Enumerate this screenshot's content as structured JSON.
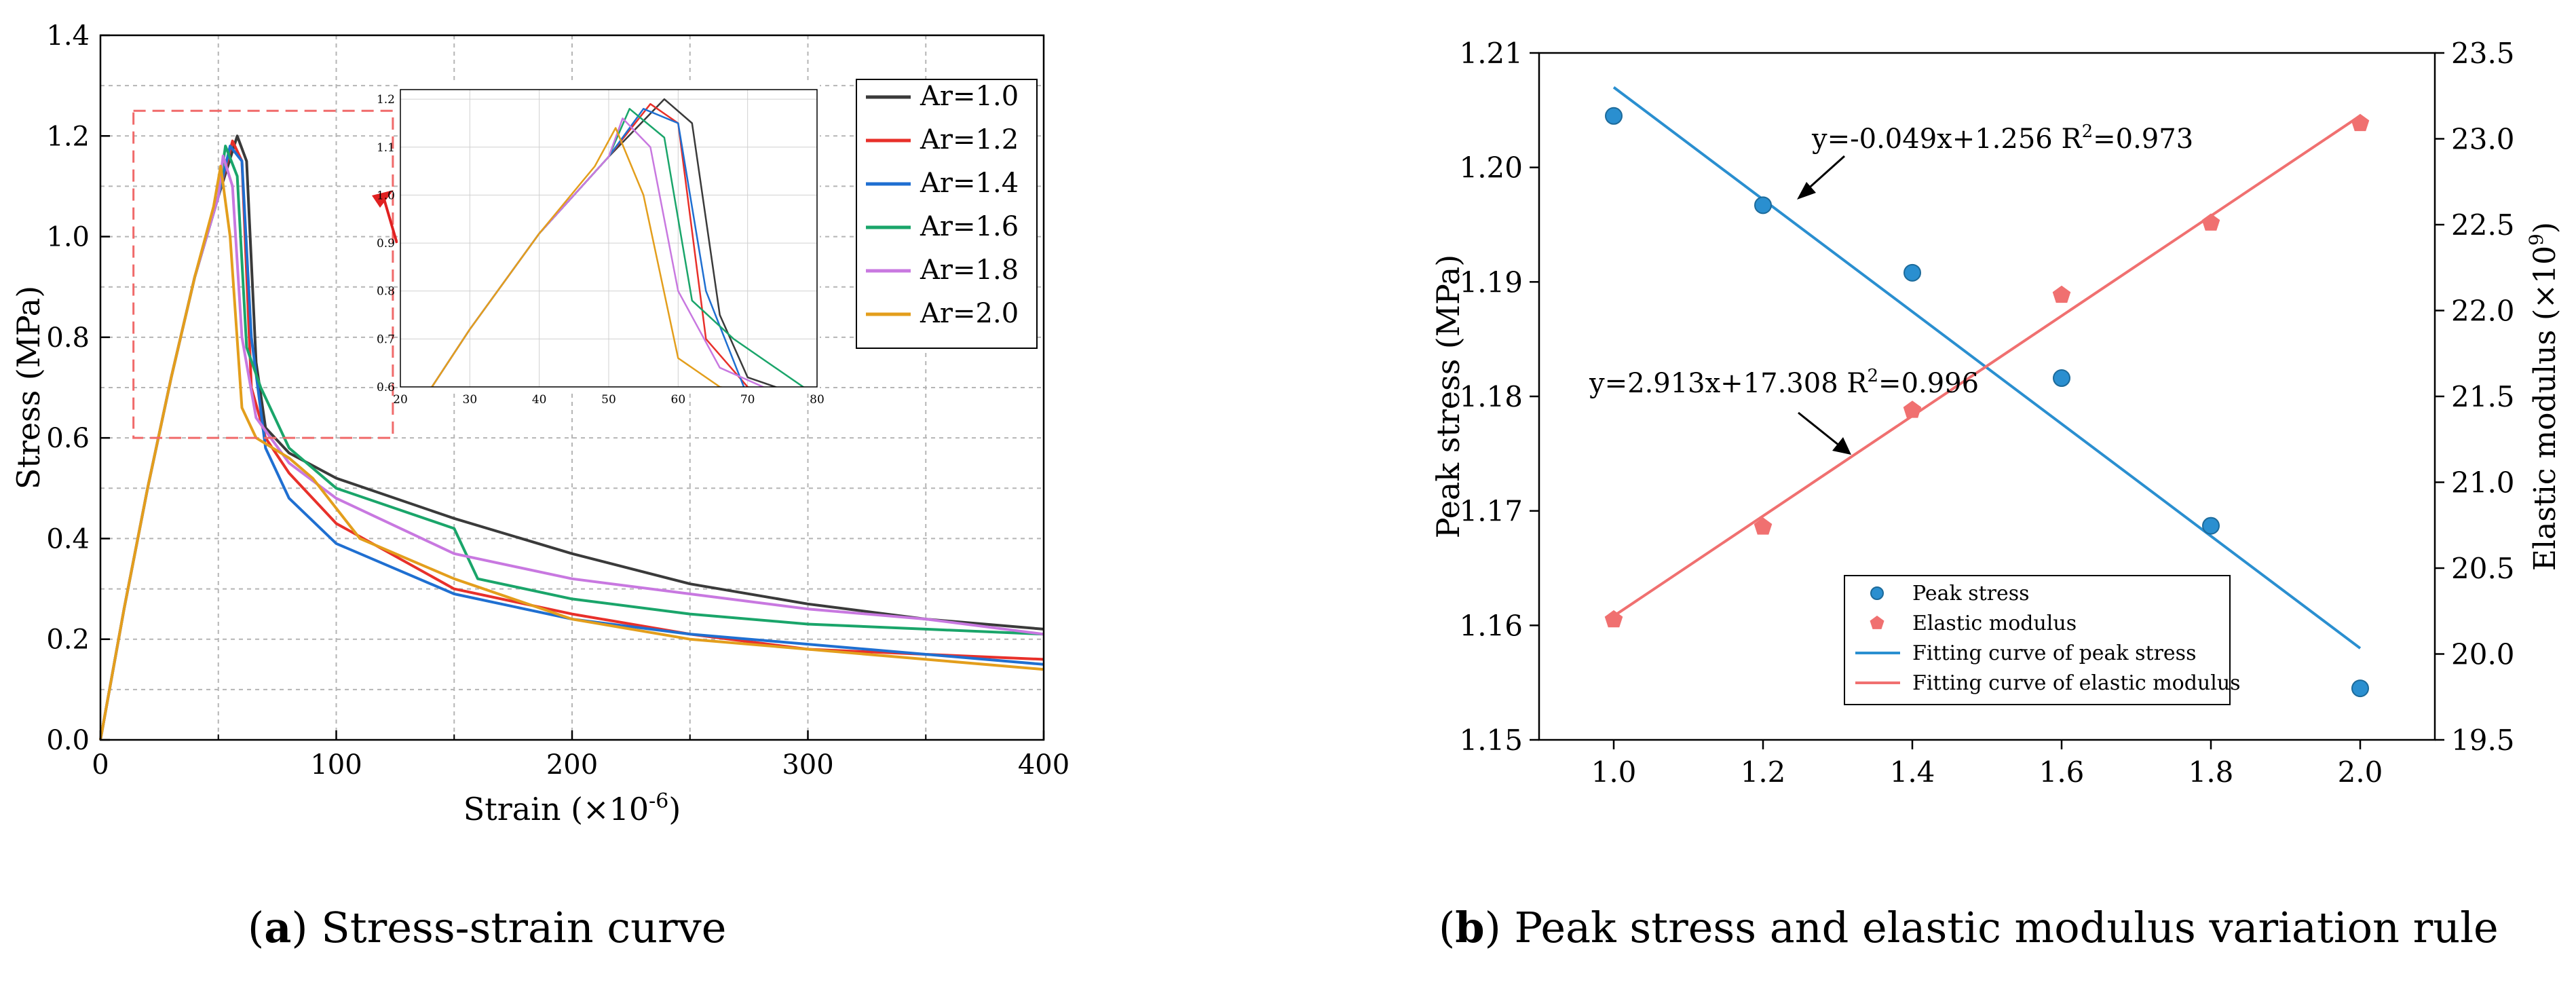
{
  "captions": {
    "a": {
      "letter": "a",
      "text": "Stress-strain curve"
    },
    "b": {
      "letter": "b",
      "text": "Peak stress and elastic modulus variation rule"
    }
  },
  "chart_data": [
    {
      "type": "line",
      "xlabel": "Strain (×10",
      "xlabel_exp": "-6",
      "xlabel_end": ")",
      "ylabel": "Stress (MPa)",
      "xlim": [
        0,
        400
      ],
      "ylim": [
        0.0,
        1.4
      ],
      "xticks": [
        "0",
        "100",
        "200",
        "300",
        "400"
      ],
      "yticks": [
        "0.0",
        "0.2",
        "0.4",
        "0.6",
        "0.8",
        "1.0",
        "1.2",
        "1.4"
      ],
      "grid": true,
      "legend_position": "top-right",
      "series": [
        {
          "name": "Ar=1.0",
          "color": "#3a3a3a",
          "x": [
            0,
            10,
            20,
            30,
            40,
            50,
            58,
            62,
            66,
            70,
            80,
            100,
            150,
            200,
            250,
            300,
            350,
            400
          ],
          "y": [
            0,
            0.26,
            0.5,
            0.72,
            0.92,
            1.08,
            1.2,
            1.15,
            0.75,
            0.62,
            0.57,
            0.52,
            0.44,
            0.37,
            0.31,
            0.27,
            0.24,
            0.22
          ]
        },
        {
          "name": "Ar=1.2",
          "color": "#e8302a",
          "x": [
            0,
            10,
            20,
            30,
            40,
            50,
            56,
            60,
            64,
            70,
            80,
            100,
            150,
            200,
            250,
            300,
            350,
            400
          ],
          "y": [
            0,
            0.26,
            0.5,
            0.72,
            0.92,
            1.08,
            1.19,
            1.15,
            0.7,
            0.6,
            0.53,
            0.43,
            0.3,
            0.25,
            0.21,
            0.18,
            0.17,
            0.16
          ]
        },
        {
          "name": "Ar=1.4",
          "color": "#1f6fd1",
          "x": [
            0,
            10,
            20,
            30,
            40,
            50,
            55,
            60,
            64,
            70,
            80,
            100,
            150,
            200,
            250,
            300,
            350,
            400
          ],
          "y": [
            0,
            0.26,
            0.5,
            0.72,
            0.92,
            1.08,
            1.18,
            1.15,
            0.8,
            0.58,
            0.48,
            0.39,
            0.29,
            0.24,
            0.21,
            0.19,
            0.17,
            0.15
          ]
        },
        {
          "name": "Ar=1.6",
          "color": "#1aa56a",
          "x": [
            0,
            10,
            20,
            30,
            40,
            50,
            53,
            58,
            62,
            68,
            80,
            100,
            150,
            160,
            200,
            250,
            300,
            350,
            400
          ],
          "y": [
            0,
            0.26,
            0.5,
            0.72,
            0.92,
            1.08,
            1.18,
            1.12,
            0.78,
            0.7,
            0.58,
            0.5,
            0.42,
            0.32,
            0.28,
            0.25,
            0.23,
            0.22,
            0.21
          ]
        },
        {
          "name": "Ar=1.8",
          "color": "#c878e0",
          "x": [
            0,
            10,
            20,
            30,
            40,
            50,
            52,
            56,
            60,
            66,
            80,
            100,
            150,
            200,
            250,
            300,
            350,
            400
          ],
          "y": [
            0,
            0.26,
            0.5,
            0.72,
            0.92,
            1.08,
            1.16,
            1.1,
            0.8,
            0.64,
            0.55,
            0.48,
            0.37,
            0.32,
            0.29,
            0.26,
            0.24,
            0.21
          ]
        },
        {
          "name": "Ar=2.0",
          "color": "#e39e1c",
          "x": [
            0,
            10,
            20,
            30,
            40,
            48,
            51,
            55,
            60,
            66,
            80,
            90,
            110,
            150,
            200,
            250,
            300,
            350,
            400
          ],
          "y": [
            0,
            0.26,
            0.5,
            0.72,
            0.92,
            1.06,
            1.14,
            1.0,
            0.66,
            0.6,
            0.56,
            0.52,
            0.4,
            0.32,
            0.24,
            0.2,
            0.18,
            0.16,
            0.14
          ]
        }
      ],
      "annotations": {
        "dashed_box_region": {
          "x": [
            14,
            124
          ],
          "y": [
            0.6,
            1.25
          ]
        }
      },
      "inset": {
        "xlim": [
          20,
          80
        ],
        "ylim": [
          0.6,
          1.22
        ],
        "xticks": [
          "20",
          "30",
          "40",
          "50",
          "60",
          "70",
          "80"
        ],
        "yticks": [
          "0.6",
          "0.7",
          "0.8",
          "0.9",
          "1.0",
          "1.1",
          "1.2"
        ]
      }
    },
    {
      "type": "scatter",
      "xlabel": "",
      "ylabel": "Peak stress (MPa)",
      "y2label": "Elastic modulus (×10",
      "y2label_exp": "9",
      "y2label_end": ")",
      "xlim": [
        0.9,
        2.1
      ],
      "ylim": [
        1.15,
        1.21
      ],
      "y2lim": [
        19.5,
        23.5
      ],
      "xticks": [
        "1.0",
        "1.2",
        "1.4",
        "1.6",
        "1.8",
        "2.0"
      ],
      "yticks": [
        "1.15",
        "1.16",
        "1.17",
        "1.18",
        "1.19",
        "1.20",
        "1.21"
      ],
      "y2ticks": [
        "19.5",
        "20.0",
        "20.5",
        "21.0",
        "21.5",
        "22.0",
        "22.5",
        "23.0",
        "23.5"
      ],
      "series": [
        {
          "name": "Peak stress",
          "axis": "left",
          "color": "#2a8fd0",
          "x": [
            1.0,
            1.2,
            1.4,
            1.6,
            1.8,
            2.0
          ],
          "y": [
            1.2045,
            1.1967,
            1.1908,
            1.1816,
            1.1687,
            1.1545
          ]
        },
        {
          "name": "Elastic modulus",
          "axis": "right",
          "color": "#f07070",
          "x": [
            1.0,
            1.2,
            1.4,
            1.6,
            1.8,
            2.0
          ],
          "y": [
            20.2,
            20.74,
            21.42,
            22.09,
            22.51,
            23.09
          ]
        }
      ],
      "fits": [
        {
          "name": "Fitting curve of peak stress",
          "axis": "left",
          "color": "#2a8fd0",
          "slope": -0.049,
          "intercept": 1.256,
          "equation": "y=-0.049x+1.256",
          "r2_label": "R",
          "r2_exp": "2",
          "r2_value": "=0.973"
        },
        {
          "name": "Fitting curve of elastic modulus",
          "axis": "right",
          "color": "#f07070",
          "slope": 2.913,
          "intercept": 17.308,
          "equation": "y=2.913x+17.308",
          "r2_label": "R",
          "r2_exp": "2",
          "r2_value": "=0.996"
        }
      ],
      "legend_position": "bottom-center"
    }
  ]
}
